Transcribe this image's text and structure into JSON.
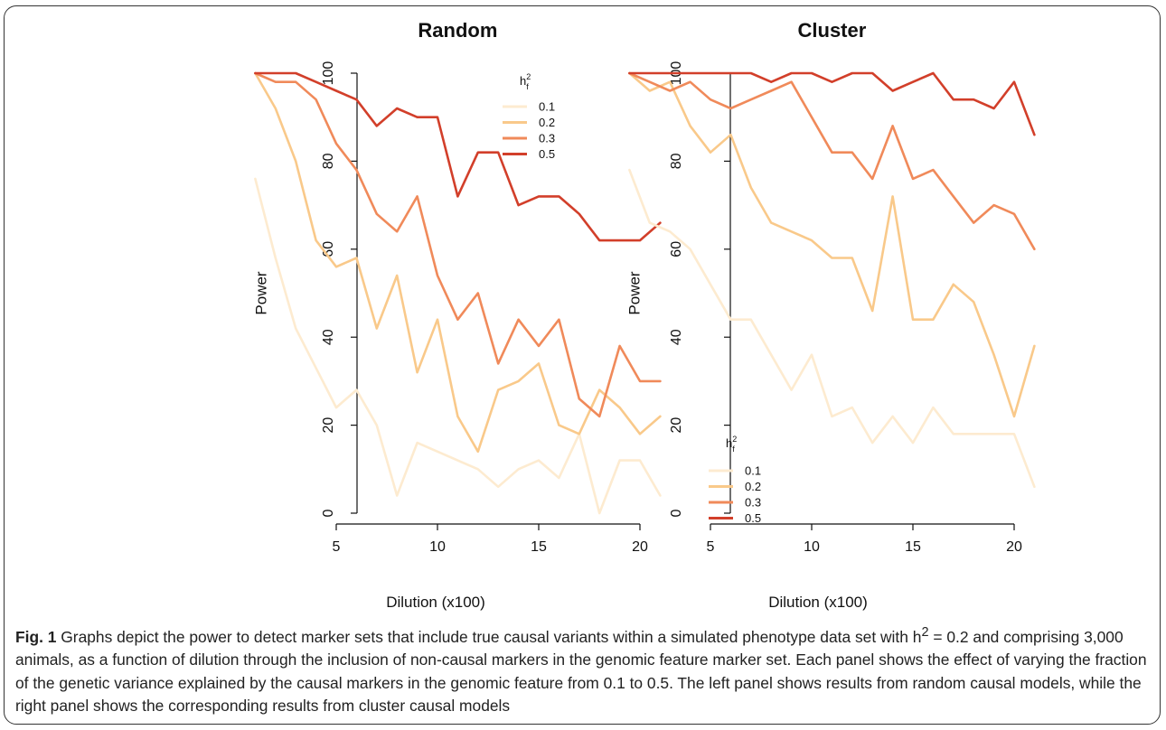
{
  "chart_data": [
    {
      "type": "line",
      "title": "Random",
      "xlabel": "Dilution (x100)",
      "ylabel": "Power",
      "xlim": [
        1,
        21
      ],
      "ylim": [
        0,
        100
      ],
      "x_ticks": [
        5,
        10,
        15,
        20
      ],
      "y_ticks": [
        0,
        20,
        40,
        60,
        80,
        100
      ],
      "x": [
        1,
        2,
        3,
        4,
        5,
        6,
        7,
        8,
        9,
        10,
        11,
        12,
        13,
        14,
        15,
        16,
        17,
        18,
        19,
        20,
        21
      ],
      "legend": {
        "title": "h",
        "title_sup": "2",
        "title_sub": "f",
        "placement": "top-right"
      },
      "series": [
        {
          "name": "0.1",
          "color": "#fdebd0",
          "values": [
            76,
            58,
            42,
            33,
            24,
            28,
            20,
            4,
            16,
            14,
            12,
            10,
            6,
            10,
            12,
            8,
            18,
            0,
            12,
            12,
            4
          ]
        },
        {
          "name": "0.2",
          "color": "#f9c98a",
          "values": [
            100,
            92,
            80,
            62,
            56,
            58,
            42,
            54,
            32,
            44,
            22,
            14,
            28,
            30,
            34,
            20,
            18,
            28,
            24,
            18,
            22
          ]
        },
        {
          "name": "0.3",
          "color": "#f08a5a",
          "values": [
            100,
            98,
            98,
            94,
            84,
            78,
            68,
            64,
            72,
            54,
            44,
            50,
            34,
            44,
            38,
            44,
            26,
            22,
            38,
            30,
            30
          ]
        },
        {
          "name": "0.5",
          "color": "#d23f2a",
          "values": [
            100,
            100,
            100,
            98,
            96,
            94,
            88,
            92,
            90,
            90,
            72,
            82,
            82,
            70,
            72,
            72,
            68,
            62,
            62,
            62,
            66
          ]
        }
      ]
    },
    {
      "type": "line",
      "title": "Cluster",
      "xlabel": "Dilution (x100)",
      "ylabel": "Power",
      "xlim": [
        1,
        21
      ],
      "ylim": [
        0,
        100
      ],
      "x_ticks": [
        5,
        10,
        15,
        20
      ],
      "y_ticks": [
        0,
        20,
        40,
        60,
        80,
        100
      ],
      "x": [
        1,
        2,
        3,
        4,
        5,
        6,
        7,
        8,
        9,
        10,
        11,
        12,
        13,
        14,
        15,
        16,
        17,
        18,
        19,
        20,
        21
      ],
      "legend": {
        "title": "h",
        "title_sup": "2",
        "title_sub": "f",
        "placement": "bottom-left"
      },
      "series": [
        {
          "name": "0.1",
          "color": "#fdebd0",
          "values": [
            78,
            66,
            64,
            60,
            52,
            44,
            44,
            36,
            28,
            36,
            22,
            24,
            16,
            22,
            16,
            24,
            18,
            18,
            18,
            18,
            6
          ]
        },
        {
          "name": "0.2",
          "color": "#f9c98a",
          "values": [
            100,
            96,
            98,
            88,
            82,
            86,
            74,
            66,
            64,
            62,
            58,
            58,
            46,
            72,
            44,
            44,
            52,
            48,
            36,
            22,
            38
          ]
        },
        {
          "name": "0.3",
          "color": "#f08a5a",
          "values": [
            100,
            98,
            96,
            98,
            94,
            92,
            94,
            96,
            98,
            90,
            82,
            82,
            76,
            88,
            76,
            78,
            72,
            66,
            70,
            68,
            60
          ]
        },
        {
          "name": "0.5",
          "color": "#d23f2a",
          "values": [
            100,
            100,
            100,
            100,
            100,
            100,
            100,
            98,
            100,
            100,
            98,
            100,
            100,
            96,
            98,
            100,
            94,
            94,
            92,
            98,
            86
          ]
        }
      ]
    }
  ],
  "caption": {
    "label": "Fig. 1",
    "text_before_h2": " Graphs depict the power to detect marker sets that include true causal variants within a simulated phenotype data set with h",
    "sup": "2",
    "text_after_h2": " = 0.2 and comprising 3,000 animals, as a function of dilution through the inclusion of non-causal markers in the genomic feature marker set. Each panel shows the effect of varying the fraction of the genetic variance explained by the causal markers in the genomic feature from 0.1 to 0.5. The left panel shows results from random causal models, while the right panel shows the corresponding results from cluster causal models"
  }
}
